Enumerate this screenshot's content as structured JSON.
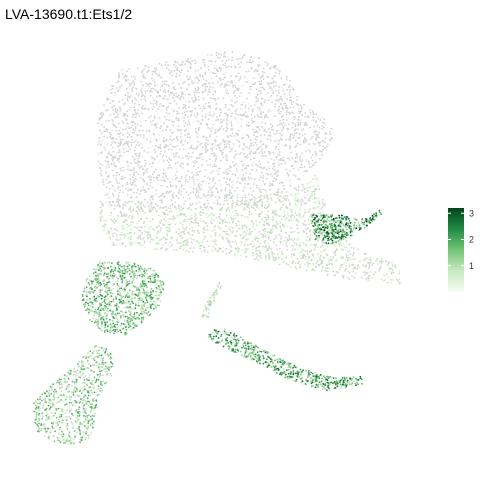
{
  "chart_data": {
    "type": "scatter",
    "title": "LVA-13690.t1:Ets1/2",
    "xlabel": "",
    "ylabel": "",
    "grid": false,
    "legend": {
      "position": "right",
      "type": "colorbar",
      "range": [
        0,
        3.2
      ],
      "ticks": [
        1,
        2,
        3
      ],
      "colors": [
        "#f7fcf5",
        "#c7e9c0",
        "#74c476",
        "#238b45",
        "#00441b"
      ]
    },
    "na_color": "#d3d3d3",
    "description_of_regions": [
      {
        "region": "upper-cloud",
        "expression": 0.1
      },
      {
        "region": "middle-band",
        "expression": 0.8
      },
      {
        "region": "right-arm-tip",
        "expression": 2.6
      },
      {
        "region": "left-cluster",
        "expression": 1.8
      },
      {
        "region": "bottom-left-branches",
        "expression": 1.6
      },
      {
        "region": "diagonal-streak",
        "expression": 2.2
      },
      {
        "region": "small-streak",
        "expression": 1.0
      }
    ]
  }
}
